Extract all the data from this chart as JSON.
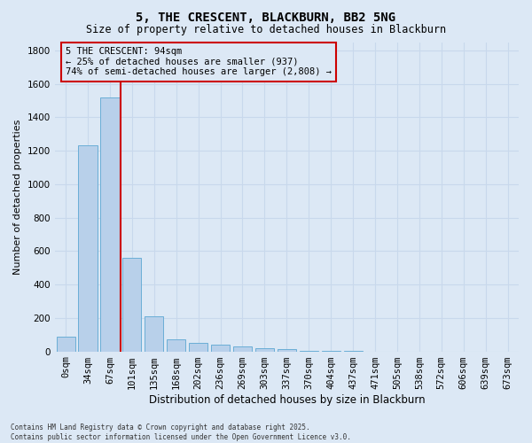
{
  "title": "5, THE CRESCENT, BLACKBURN, BB2 5NG",
  "subtitle": "Size of property relative to detached houses in Blackburn",
  "xlabel": "Distribution of detached houses by size in Blackburn",
  "ylabel": "Number of detached properties",
  "footnote": "Contains HM Land Registry data © Crown copyright and database right 2025.\nContains public sector information licensed under the Open Government Licence v3.0.",
  "categories": [
    "0sqm",
    "34sqm",
    "67sqm",
    "101sqm",
    "135sqm",
    "168sqm",
    "202sqm",
    "236sqm",
    "269sqm",
    "303sqm",
    "337sqm",
    "370sqm",
    "404sqm",
    "437sqm",
    "471sqm",
    "505sqm",
    "538sqm",
    "572sqm",
    "606sqm",
    "639sqm",
    "673sqm"
  ],
  "values": [
    90,
    1230,
    1520,
    560,
    210,
    70,
    50,
    38,
    30,
    18,
    12,
    5,
    3,
    2,
    0,
    0,
    0,
    0,
    0,
    0,
    0
  ],
  "bar_color": "#b8d0ea",
  "bar_edge_color": "#6baed6",
  "grid_color": "#c8d8ec",
  "bg_color": "#dce8f5",
  "vline_color": "#cc0000",
  "vline_x": 2.5,
  "annotation_text": "5 THE CRESCENT: 94sqm\n← 25% of detached houses are smaller (937)\n74% of semi-detached houses are larger (2,808) →",
  "annotation_box_color": "#cc0000",
  "annotation_box_fill": "#dce8f5",
  "ylim": [
    0,
    1850
  ],
  "yticks": [
    0,
    200,
    400,
    600,
    800,
    1000,
    1200,
    1400,
    1600,
    1800
  ],
  "title_fontsize": 10,
  "subtitle_fontsize": 8.5,
  "ylabel_fontsize": 8,
  "xlabel_fontsize": 8.5,
  "tick_fontsize": 7.5,
  "annot_fontsize": 7.5
}
